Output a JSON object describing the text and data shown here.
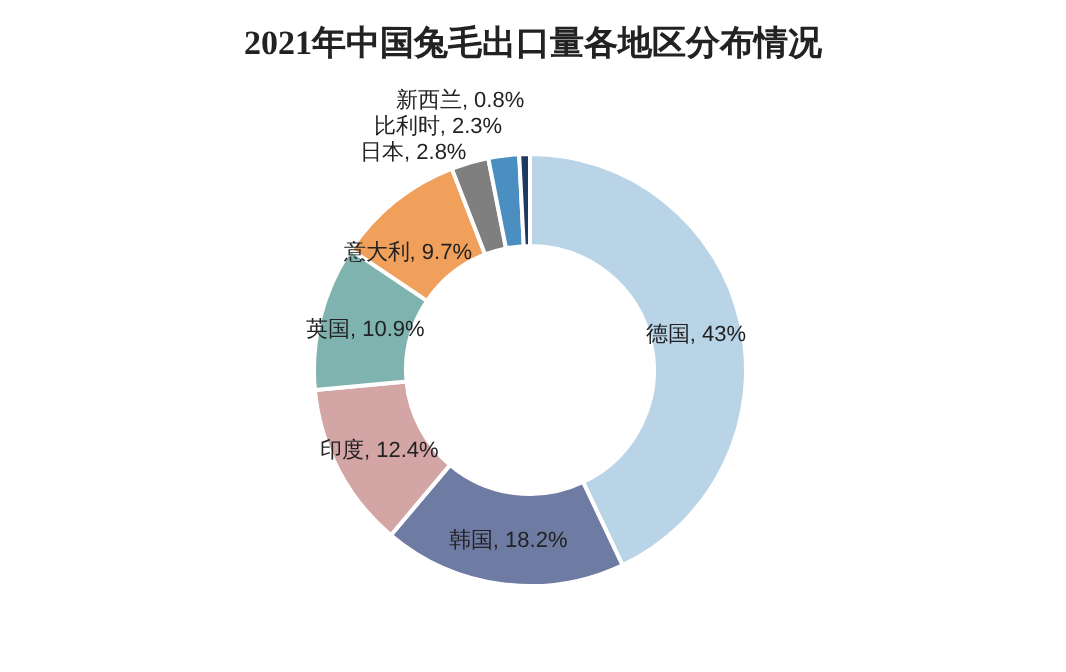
{
  "chart_data": {
    "type": "donut",
    "title": "2021年中国兔毛出口量各地区分布情况",
    "categories": [
      "德国",
      "韩国",
      "印度",
      "英国",
      "意大利",
      "日本",
      "比利时",
      "新西兰"
    ],
    "values": [
      43,
      18.2,
      12.4,
      10.9,
      9.7,
      2.8,
      2.3,
      0.8
    ],
    "colors": [
      "#b8d4e6",
      "#6e7ba3",
      "#d4a5a5",
      "#7fb3b0",
      "#f0a05a",
      "#7f7f7f",
      "#4a8fc0",
      "#1f3a5f"
    ],
    "value_labels": [
      ", 43%",
      ", 18.2%",
      ", 12.4%",
      ", 10.9%",
      ", 9.7%",
      ", 2.8%",
      ", 2.3%",
      ", 0.8%"
    ]
  }
}
